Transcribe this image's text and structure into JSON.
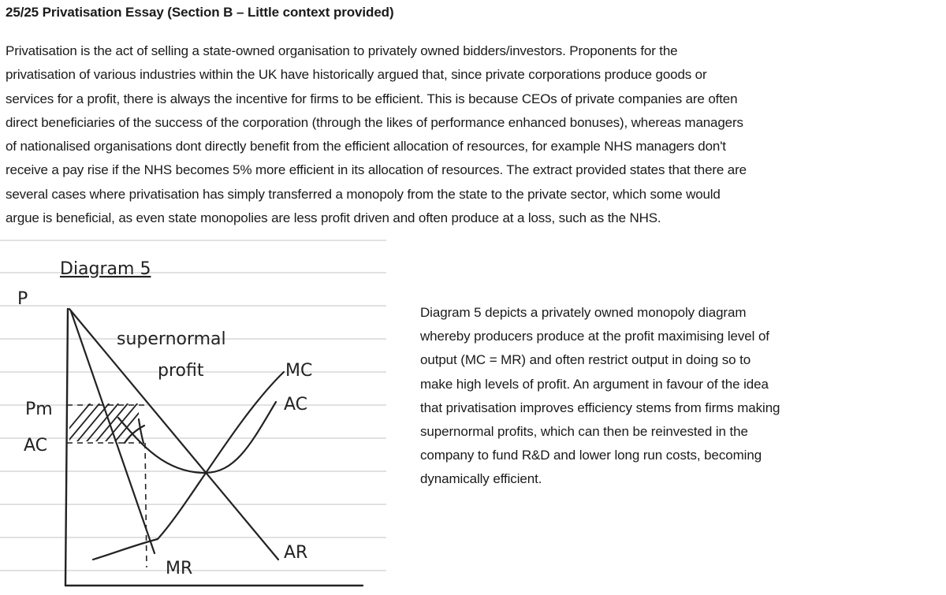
{
  "document": {
    "title": "25/25 Privatisation Essay (Section B – Little context provided)",
    "intro_lines": [
      "Privatisation is the act of selling a state-owned organisation to privately owned bidders/investors. Proponents for the",
      "privatisation of various industries within the UK have historically argued that, since private corporations produce goods or",
      "services for a profit, there is always the incentive for firms to be efficient. This is because CEOs of private companies are often",
      "direct beneficiaries of the success of the corporation (through the likes of performance enhanced bonuses), whereas managers",
      "of nationalised organisations dont directly benefit from the efficient allocation of resources, for example NHS managers don't",
      "receive a pay rise if the NHS becomes 5% more efficient in its allocation of resources. The extract provided states that there are",
      "several cases where privatisation has simply transferred a monopoly from the state to the private sector, which some would",
      "argue is beneficial, as even state monopolies are less profit driven and often produce at a loss, such as the NHS."
    ],
    "caption_lines": [
      "Diagram 5 depicts a privately owned monopoly diagram",
      "whereby producers produce at the profit maximising level of",
      "output (MC = MR) and often restrict output in doing so to",
      "make high levels of profit. An argument in favour of the idea",
      "that privatisation improves efficiency stems from firms making",
      "supernormal profits, which can then be reinvested in the",
      "company to fund R&D and lower long run costs, becoming",
      "dynamically efficient."
    ]
  },
  "diagram": {
    "title": "Diagram 5",
    "axis_p": "P",
    "label_pm": "Pm",
    "label_ac_left": "AC",
    "label_supernormal_1": "supernormal",
    "label_supernormal_2": "profit",
    "label_mc": "MC",
    "label_ac_curve": "AC",
    "label_mr": "MR",
    "label_ar": "AR",
    "ink_color": "#222222",
    "ruled_line_color": "#cfcfcf"
  }
}
